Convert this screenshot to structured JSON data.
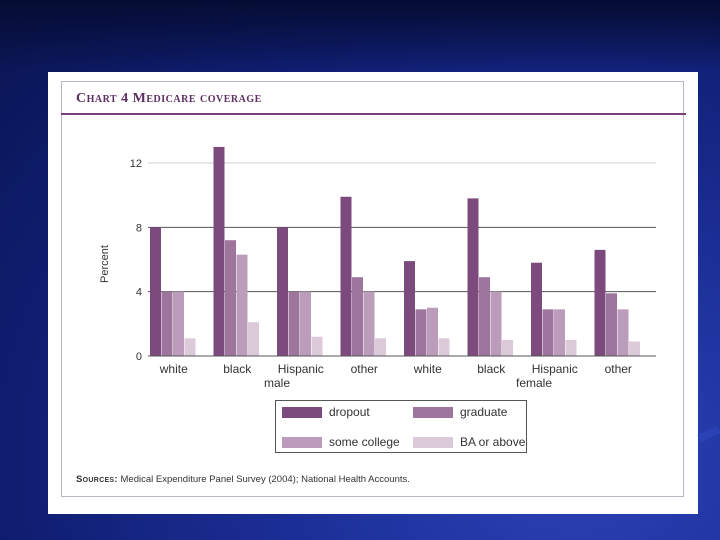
{
  "chart_title": "Chart 4 Medicare coverage",
  "sources": {
    "label": "Sources:",
    "text": " Medical Expenditure Panel Survey (2004); National Health Accounts."
  },
  "colors": {
    "dropout": "#7d4a7d",
    "graduate": "#9e769d",
    "some_college": "#bb9cbb",
    "ba_or_above": "#dccadb",
    "slide_background": "#1c2f98",
    "title": "#5e2f61"
  },
  "chart_data": {
    "type": "bar",
    "title": "Chart 4 Medicare coverage",
    "xlabel": "",
    "ylabel": "Percent",
    "ylim": [
      0,
      12
    ],
    "yticks": [
      0,
      4,
      8,
      12
    ],
    "grid": true,
    "legend_position": "bottom-center",
    "categories": [
      "white",
      "black",
      "Hispanic",
      "other",
      "white",
      "black",
      "Hispanic",
      "other"
    ],
    "groups": [
      {
        "label": "male",
        "categories": [
          "white",
          "black",
          "Hispanic",
          "other"
        ]
      },
      {
        "label": "female",
        "categories": [
          "white",
          "black",
          "Hispanic",
          "other"
        ]
      }
    ],
    "series": [
      {
        "name": "dropout",
        "values": [
          8.0,
          13.0,
          8.0,
          9.9,
          5.9,
          9.8,
          5.8,
          6.6
        ]
      },
      {
        "name": "graduate",
        "values": [
          4.0,
          7.2,
          4.0,
          4.9,
          2.9,
          4.9,
          2.9,
          3.9
        ]
      },
      {
        "name": "some college",
        "values": [
          4.0,
          6.3,
          4.0,
          4.0,
          3.0,
          4.0,
          2.9,
          2.9
        ]
      },
      {
        "name": "BA or above",
        "values": [
          1.1,
          2.1,
          1.2,
          1.1,
          1.1,
          1.0,
          1.0,
          0.9
        ]
      }
    ]
  }
}
